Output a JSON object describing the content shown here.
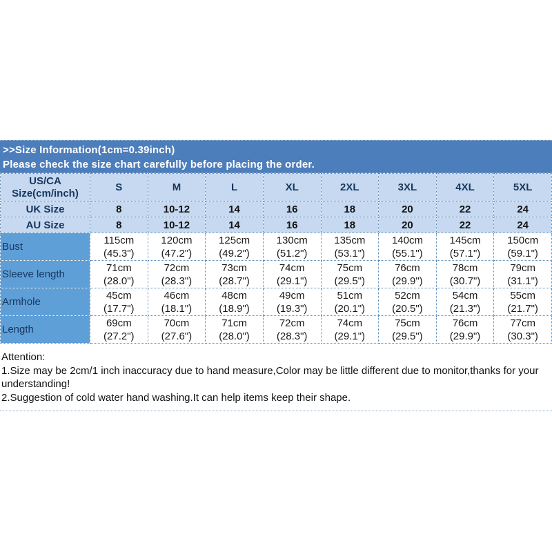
{
  "colors": {
    "banner_bg": "#4d7ebc",
    "header_row_bg": "#c6d9f0",
    "measure_label_bg": "#5f9fd8",
    "header_text": "#17375e",
    "grid_dotted": "#5b8db8"
  },
  "banner": {
    "line1": ">>Size Information(1cm=0.39inch)",
    "line2": "Please check the size chart carefully before placing the order."
  },
  "chart": {
    "corner": "US/CA Size(cm/inch)",
    "sizes": [
      "S",
      "M",
      "L",
      "XL",
      "2XL",
      "3XL",
      "4XL",
      "5XL"
    ],
    "uk": {
      "label": "UK Size",
      "v": [
        "8",
        "10-12",
        "14",
        "16",
        "18",
        "20",
        "22",
        "24"
      ]
    },
    "au": {
      "label": "AU Size",
      "v": [
        "8",
        "10-12",
        "14",
        "16",
        "18",
        "20",
        "22",
        "24"
      ]
    },
    "rows": [
      {
        "label": "Bust",
        "cm": [
          "115cm",
          "120cm",
          "125cm",
          "130cm",
          "135cm",
          "140cm",
          "145cm",
          "150cm"
        ],
        "in": [
          "(45.3\")",
          "(47.2\")",
          "(49.2\")",
          "(51.2\")",
          "(53.1\")",
          "(55.1\")",
          "(57.1\")",
          "(59.1\")"
        ]
      },
      {
        "label": "Sleeve length",
        "cm": [
          "71cm",
          "72cm",
          "73cm",
          "74cm",
          "75cm",
          "76cm",
          "78cm",
          "79cm"
        ],
        "in": [
          "(28.0\")",
          "(28.3\")",
          "(28.7\")",
          "(29.1\")",
          "(29.5\")",
          "(29.9\")",
          "(30.7\")",
          "(31.1\")"
        ]
      },
      {
        "label": "Armhole",
        "cm": [
          "45cm",
          "46cm",
          "48cm",
          "49cm",
          "51cm",
          "52cm",
          "54cm",
          "55cm"
        ],
        "in": [
          "(17.7\")",
          "(18.1\")",
          "(18.9\")",
          "(19.3\")",
          "(20.1\")",
          "(20.5\")",
          "(21.3\")",
          "(21.7\")"
        ]
      },
      {
        "label": "Length",
        "cm": [
          "69cm",
          "70cm",
          "71cm",
          "72cm",
          "74cm",
          "75cm",
          "76cm",
          "77cm"
        ],
        "in": [
          "(27.2\")",
          "(27.6\")",
          "(28.0\")",
          "(28.3\")",
          "(29.1\")",
          "(29.5\")",
          "(29.9\")",
          "(30.3\")"
        ]
      }
    ]
  },
  "attention": {
    "heading": "Attention:",
    "line1": "1.Size may be 2cm/1 inch inaccuracy due to hand measure,Color may be little different due to monitor,thanks for your understanding!",
    "line2": "2.Suggestion of cold water hand washing.It can help items keep their shape."
  }
}
